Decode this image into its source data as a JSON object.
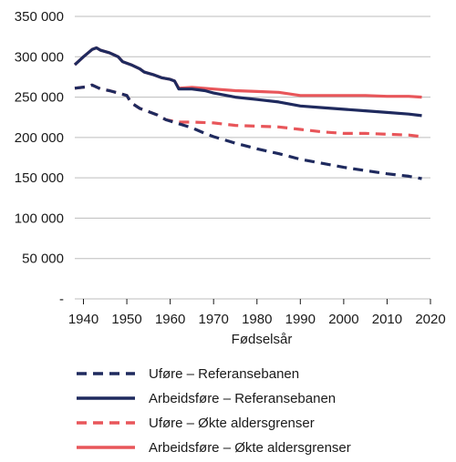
{
  "chart_data": {
    "type": "line",
    "xlabel": "Fødselsår",
    "ylabel": "",
    "xlim": [
      1938,
      2020
    ],
    "ylim": [
      0,
      350000
    ],
    "x_ticks": [
      1940,
      1950,
      1960,
      1970,
      1980,
      1990,
      2000,
      2010,
      2020
    ],
    "y_ticks": [
      {
        "value": 0,
        "label": "-"
      },
      {
        "value": 50000,
        "label": "50 000"
      },
      {
        "value": 100000,
        "label": "100 000"
      },
      {
        "value": 150000,
        "label": "150 000"
      },
      {
        "value": 200000,
        "label": "200 000"
      },
      {
        "value": 250000,
        "label": "250 000"
      },
      {
        "value": 300000,
        "label": "300 000"
      },
      {
        "value": 350000,
        "label": "350 000"
      }
    ],
    "grid": "horizontal",
    "legend_position": "bottom",
    "series": [
      {
        "name": "Uføre – Referansebanen",
        "color": "#1f2a5e",
        "style": "dashed",
        "points": [
          [
            1938,
            261000
          ],
          [
            1941,
            263000
          ],
          [
            1942,
            265000
          ],
          [
            1944,
            260000
          ],
          [
            1946,
            258000
          ],
          [
            1948,
            255000
          ],
          [
            1950,
            252000
          ],
          [
            1951,
            243000
          ],
          [
            1953,
            236000
          ],
          [
            1955,
            232000
          ],
          [
            1957,
            228000
          ],
          [
            1959,
            222000
          ],
          [
            1962,
            217000
          ],
          [
            1965,
            212000
          ],
          [
            1968,
            205000
          ],
          [
            1970,
            201000
          ],
          [
            1975,
            193000
          ],
          [
            1980,
            186000
          ],
          [
            1985,
            180000
          ],
          [
            1990,
            173000
          ],
          [
            1995,
            168000
          ],
          [
            2000,
            163000
          ],
          [
            2005,
            159000
          ],
          [
            2010,
            155000
          ],
          [
            2015,
            152000
          ],
          [
            2018,
            149000
          ]
        ]
      },
      {
        "name": "Arbeidsføre – Referansebanen",
        "color": "#1f2a5e",
        "style": "solid",
        "points": [
          [
            1938,
            290000
          ],
          [
            1940,
            300000
          ],
          [
            1942,
            309000
          ],
          [
            1943,
            311000
          ],
          [
            1944,
            308000
          ],
          [
            1946,
            305000
          ],
          [
            1948,
            300000
          ],
          [
            1949,
            294000
          ],
          [
            1951,
            290000
          ],
          [
            1953,
            285000
          ],
          [
            1954,
            281000
          ],
          [
            1956,
            278000
          ],
          [
            1958,
            274000
          ],
          [
            1960,
            272000
          ],
          [
            1961,
            270000
          ],
          [
            1962,
            260000
          ],
          [
            1965,
            260000
          ],
          [
            1968,
            258000
          ],
          [
            1970,
            255000
          ],
          [
            1975,
            250000
          ],
          [
            1980,
            247000
          ],
          [
            1985,
            244000
          ],
          [
            1990,
            239000
          ],
          [
            1995,
            237000
          ],
          [
            2000,
            235000
          ],
          [
            2005,
            233000
          ],
          [
            2010,
            231000
          ],
          [
            2015,
            229000
          ],
          [
            2018,
            227000
          ]
        ]
      },
      {
        "name": "Uføre – Økte aldersgrenser",
        "color": "#e8565a",
        "style": "dashed",
        "points": [
          [
            1938,
            261000
          ],
          [
            1941,
            263000
          ],
          [
            1942,
            265000
          ],
          [
            1944,
            260000
          ],
          [
            1946,
            258000
          ],
          [
            1948,
            255000
          ],
          [
            1950,
            252000
          ],
          [
            1951,
            243000
          ],
          [
            1953,
            236000
          ],
          [
            1955,
            232000
          ],
          [
            1957,
            228000
          ],
          [
            1959,
            222000
          ],
          [
            1962,
            219000
          ],
          [
            1965,
            219000
          ],
          [
            1970,
            218000
          ],
          [
            1975,
            215000
          ],
          [
            1980,
            214000
          ],
          [
            1985,
            213000
          ],
          [
            1990,
            210000
          ],
          [
            1995,
            207000
          ],
          [
            2000,
            205000
          ],
          [
            2005,
            205000
          ],
          [
            2010,
            204000
          ],
          [
            2015,
            203000
          ],
          [
            2018,
            201000
          ]
        ]
      },
      {
        "name": "Arbeidsføre – Økte aldersgrenser",
        "color": "#e8565a",
        "style": "solid",
        "points": [
          [
            1938,
            290000
          ],
          [
            1940,
            300000
          ],
          [
            1942,
            309000
          ],
          [
            1943,
            311000
          ],
          [
            1944,
            308000
          ],
          [
            1946,
            305000
          ],
          [
            1948,
            300000
          ],
          [
            1949,
            294000
          ],
          [
            1951,
            290000
          ],
          [
            1953,
            285000
          ],
          [
            1954,
            281000
          ],
          [
            1956,
            278000
          ],
          [
            1958,
            274000
          ],
          [
            1960,
            272000
          ],
          [
            1961,
            270000
          ],
          [
            1962,
            261000
          ],
          [
            1965,
            262000
          ],
          [
            1970,
            260000
          ],
          [
            1975,
            258000
          ],
          [
            1980,
            257000
          ],
          [
            1985,
            256000
          ],
          [
            1990,
            252000
          ],
          [
            1995,
            252000
          ],
          [
            2000,
            252000
          ],
          [
            2005,
            252000
          ],
          [
            2010,
            251000
          ],
          [
            2015,
            251000
          ],
          [
            2018,
            250000
          ]
        ]
      }
    ]
  }
}
